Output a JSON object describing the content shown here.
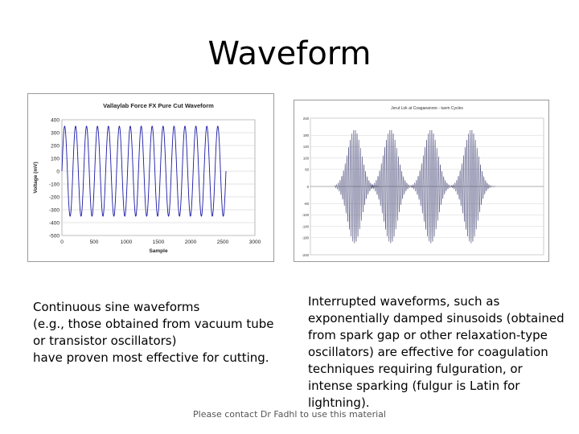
{
  "slide": {
    "title": "Waveform",
    "left_caption": [
      "Continuous sine waveforms",
      "(e.g., those obtained from vacuum tube",
      "or transistor oscillators)",
      "have proven most effective for cutting."
    ],
    "right_caption": [
      "Interrupted waveforms, such as",
      "exponentially damped sinusoids (obtained",
      "from spark gap or other relaxation-type",
      "oscillators) are effective for coagulation",
      "techniques requiring fulguration, or",
      "intense sparking (fulgur is Latin for",
      "lightning)."
    ],
    "footer": "Please contact Dr Fadhl to use this material"
  },
  "chart_data": [
    {
      "type": "line",
      "title": "Vallaylab Force FX Pure Cut Waveform",
      "xlabel": "Sample",
      "ylabel": "Voltage (mV)",
      "xlim": [
        0,
        3000
      ],
      "ylim": [
        -500,
        400
      ],
      "x_ticks": [
        "0",
        "500",
        "1000",
        "1500",
        "2000",
        "2500",
        "3000"
      ],
      "y_ticks": [
        "400",
        "300",
        "200",
        "100",
        "0",
        "-100",
        "-200",
        "-300",
        "-400",
        "-500"
      ],
      "grid": true,
      "series_color": "#1a1aa6",
      "waveform": {
        "kind": "sine",
        "amplitude": 350,
        "cycles": 15,
        "x_start": 0,
        "x_end": 2550
      }
    },
    {
      "type": "line",
      "title": "Jerut Lok at Coagaeanore - tuem Cycles",
      "ylim": [
        -240,
        240
      ],
      "y_ticks": [
        "240",
        "180",
        "140",
        "100",
        "60",
        "0",
        "-60",
        "-100",
        "-140",
        "-180",
        "-240"
      ],
      "grid": true,
      "series_color": "#3a3a6e",
      "waveform": {
        "kind": "damped-bursts",
        "bursts": 4,
        "peak": 200
      }
    }
  ]
}
